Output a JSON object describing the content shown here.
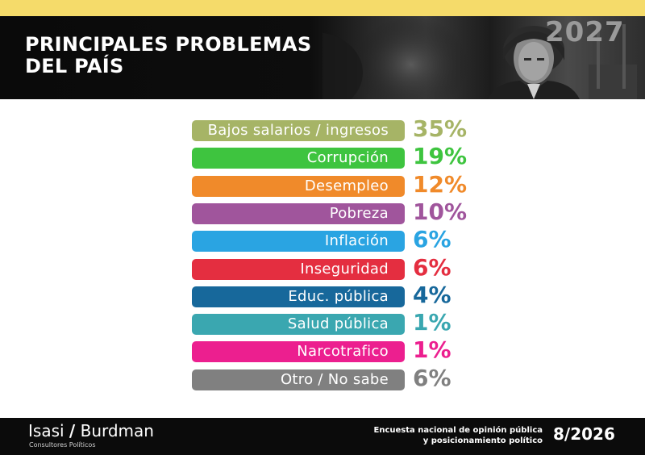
{
  "header": {
    "title_line1": "PRINCIPALES PROBLEMAS",
    "title_line2": "DEL PAÍS",
    "background_year": "2027"
  },
  "chart_data": {
    "type": "bar",
    "title": "PRINCIPALES PROBLEMAS DEL PAÍS",
    "categories": [
      "Bajos salarios / ingresos",
      "Corrupción",
      "Desempleo",
      "Pobreza",
      "Inflación",
      "Inseguridad",
      "Educ. pública",
      "Salud pública",
      "Narcotrafico",
      "Otro / No sabe"
    ],
    "values": [
      35,
      19,
      12,
      10,
      6,
      6,
      4,
      1,
      1,
      6
    ],
    "value_labels": [
      "35%",
      "19%",
      "12%",
      "10%",
      "6%",
      "6%",
      "4%",
      "1%",
      "1%",
      "6%"
    ],
    "colors": [
      "#a6b466",
      "#3ec43f",
      "#f08a2a",
      "#a0559c",
      "#2aa4e2",
      "#e42e40",
      "#17689b",
      "#3aa7b0",
      "#ec1f8f",
      "#808080"
    ],
    "legend": "none",
    "grid": false
  },
  "footer": {
    "brand_left": "Isasi",
    "brand_slash": "/",
    "brand_right": "Burdman",
    "brand_sub": "Consultores Políticos",
    "survey_line1": "Encuesta nacional de opinión pública",
    "survey_line2": "y posicionamiento político",
    "date": "8/2026"
  },
  "colors": {
    "top_stripe": "#f5db6a",
    "header_bg": "#0a0a0a",
    "footer_bg": "#0b0b0b"
  }
}
